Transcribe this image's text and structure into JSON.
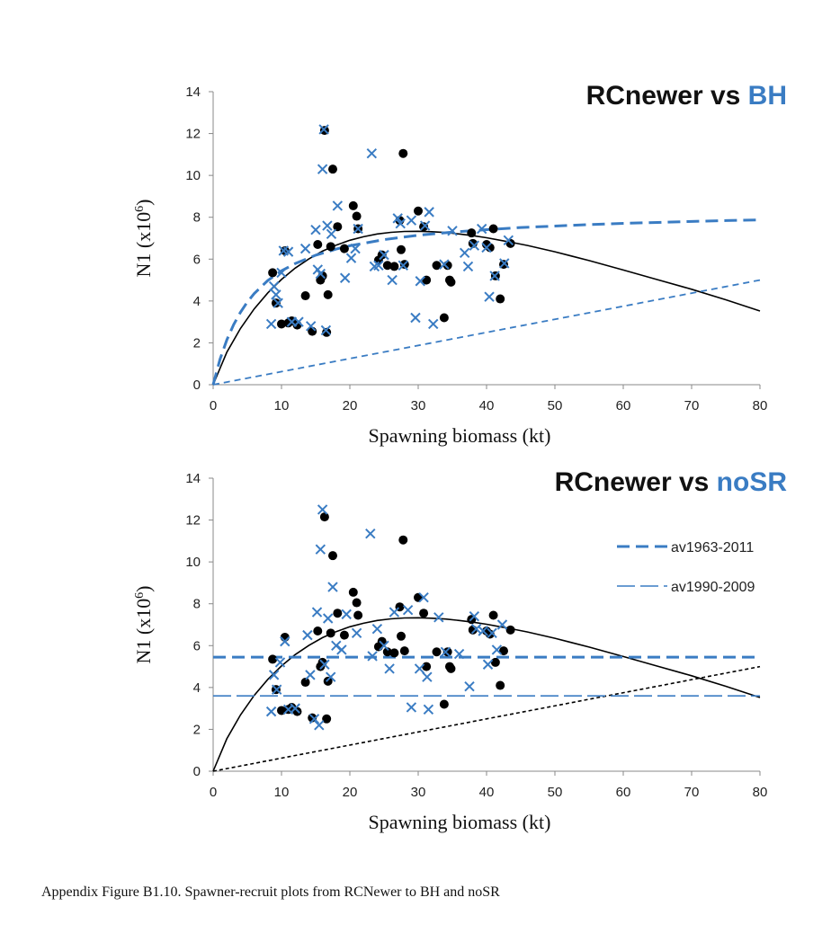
{
  "caption": "Appendix Figure B1.10.  Spawner-recruit plots from RCNewer to BH and noSR",
  "colors": {
    "blue": "#3a7cc3",
    "black": "#000000"
  },
  "chart_data": [
    {
      "type": "scatter",
      "title_part1": "RCnewer vs ",
      "title_part2": "BH",
      "xlabel": "Spawning biomass (kt)",
      "ylabel_base": "N1 (x10",
      "ylabel_exp": "6",
      "ylabel_close": ")",
      "xlim": [
        0,
        80
      ],
      "ylim": [
        0,
        14
      ],
      "xticks": [
        0,
        10,
        20,
        30,
        40,
        50,
        60,
        70,
        80
      ],
      "yticks": [
        0,
        2,
        4,
        6,
        8,
        10,
        12,
        14
      ],
      "grid": false,
      "series": [
        {
          "marker": "dot",
          "color": "#000000",
          "x": [
            8.7,
            9.2,
            10.0,
            10.5,
            11.0,
            11.5,
            12.3,
            13.5,
            14.5,
            15.3,
            15.7,
            16.0,
            16.3,
            16.6,
            16.8,
            17.2,
            17.5,
            18.2,
            19.2,
            20.5,
            21.0,
            21.2,
            24.2,
            24.7,
            25.5,
            26.5,
            27.3,
            27.5,
            27.8,
            28.0,
            30.0,
            30.8,
            31.2,
            32.7,
            34.3,
            34.6,
            34.8,
            33.8,
            37.8,
            38.0,
            40.0,
            40.5,
            41.0,
            41.3,
            42.0,
            42.5,
            43.5
          ],
          "y": [
            5.35,
            3.9,
            2.9,
            6.4,
            2.95,
            3.05,
            2.85,
            4.25,
            2.55,
            6.7,
            5.0,
            5.2,
            12.15,
            2.5,
            4.3,
            6.6,
            10.3,
            7.55,
            6.5,
            8.55,
            8.05,
            7.45,
            5.95,
            6.2,
            5.7,
            5.65,
            7.85,
            6.45,
            11.05,
            5.75,
            8.3,
            7.55,
            5.0,
            5.7,
            5.7,
            5.0,
            4.9,
            3.2,
            7.25,
            6.75,
            6.7,
            6.55,
            7.45,
            5.2,
            4.1,
            5.75,
            6.75
          ]
        },
        {
          "marker": "cross",
          "color": "#3a7cc3",
          "x": [
            8.5,
            8.9,
            9.2,
            9.5,
            10.0,
            10.3,
            11.0,
            11.5,
            12.5,
            13.5,
            14.3,
            15.0,
            15.3,
            15.7,
            16.0,
            16.2,
            16.5,
            16.7,
            17.3,
            18.2,
            19.3,
            20.2,
            20.8,
            21.2,
            23.2,
            23.6,
            24.2,
            25.0,
            26.2,
            27.0,
            27.4,
            27.8,
            29.0,
            29.6,
            30.3,
            31.0,
            31.6,
            32.2,
            33.8,
            35.0,
            36.8,
            37.3,
            38.2,
            39.3,
            40.0,
            40.4,
            41.2,
            42.6,
            43.2
          ],
          "y": [
            2.9,
            4.7,
            4.3,
            3.9,
            5.35,
            6.4,
            6.35,
            3.0,
            3.0,
            6.5,
            2.8,
            7.4,
            5.5,
            5.3,
            10.3,
            12.2,
            2.6,
            7.6,
            7.2,
            8.55,
            5.1,
            6.05,
            6.5,
            7.45,
            11.05,
            5.65,
            5.7,
            6.2,
            5.0,
            7.95,
            7.7,
            5.7,
            7.85,
            3.2,
            4.95,
            7.6,
            8.25,
            2.9,
            5.75,
            7.35,
            6.3,
            5.65,
            6.65,
            7.45,
            6.55,
            4.2,
            5.2,
            5.8,
            6.9
          ]
        },
        {
          "type": "line",
          "style": "solid",
          "color": "#000000",
          "x": [
            0,
            2,
            4,
            6,
            8,
            10,
            12,
            14,
            16,
            18,
            20,
            22,
            24,
            26,
            28,
            30,
            32,
            34,
            36,
            38,
            40,
            42,
            44,
            46,
            48,
            50,
            55,
            60,
            65,
            70,
            75,
            80
          ],
          "y": [
            0,
            1.55,
            2.69,
            3.62,
            4.39,
            5.03,
            5.57,
            6.01,
            6.38,
            6.67,
            6.9,
            7.07,
            7.2,
            7.28,
            7.32,
            7.33,
            7.31,
            7.27,
            7.2,
            7.12,
            7.02,
            6.9,
            6.78,
            6.65,
            6.5,
            6.35,
            5.93,
            5.48,
            5.02,
            4.56,
            4.06,
            3.52
          ]
        },
        {
          "type": "line",
          "style": "dash",
          "color": "#3a7cc3",
          "x": [
            0,
            1,
            2,
            3,
            4,
            5,
            6,
            8,
            10,
            12,
            15,
            18,
            20,
            25,
            30,
            35,
            40,
            45,
            50,
            55,
            60,
            65,
            70,
            75,
            80
          ],
          "y": [
            0,
            1.21,
            2.14,
            2.87,
            3.46,
            3.95,
            4.35,
            4.98,
            5.44,
            5.79,
            6.19,
            6.48,
            6.64,
            6.93,
            7.14,
            7.29,
            7.41,
            7.51,
            7.58,
            7.65,
            7.71,
            7.75,
            7.8,
            7.84,
            7.87
          ]
        },
        {
          "type": "line",
          "style": "dash-fine",
          "color": "#3a7cc3",
          "x": [
            0,
            80
          ],
          "y": [
            0,
            5.0
          ]
        }
      ]
    },
    {
      "type": "scatter",
      "title_part1": "RCnewer vs ",
      "title_part2": "noSR",
      "xlabel": "Spawning biomass (kt)",
      "ylabel_base": "N1 (x10",
      "ylabel_exp": "6",
      "ylabel_close": ")",
      "xlim": [
        0,
        80
      ],
      "ylim": [
        0,
        14
      ],
      "xticks": [
        0,
        10,
        20,
        30,
        40,
        50,
        60,
        70,
        80
      ],
      "yticks": [
        0,
        2,
        4,
        6,
        8,
        10,
        12,
        14
      ],
      "grid": false,
      "legend": {
        "placement": "top-right",
        "items": [
          {
            "label": "av1963-2011",
            "style": "dash",
            "color": "#3a7cc3"
          },
          {
            "label": "av1990-2009",
            "style": "longdash-thin",
            "color": "#3a7cc3"
          }
        ]
      },
      "series": [
        {
          "marker": "dot",
          "color": "#000000",
          "x": [
            8.7,
            9.2,
            10.0,
            10.5,
            11.0,
            11.5,
            12.3,
            13.5,
            14.5,
            15.3,
            15.7,
            16.0,
            16.3,
            16.6,
            16.8,
            17.2,
            17.5,
            18.2,
            19.2,
            20.5,
            21.0,
            21.2,
            24.2,
            24.7,
            25.5,
            26.5,
            27.3,
            27.5,
            27.8,
            28.0,
            30.0,
            30.8,
            31.2,
            32.7,
            34.3,
            34.6,
            34.8,
            33.8,
            37.8,
            38.0,
            40.0,
            40.5,
            41.0,
            41.3,
            42.0,
            42.5,
            43.5
          ],
          "y": [
            5.35,
            3.9,
            2.9,
            6.4,
            2.95,
            3.05,
            2.85,
            4.25,
            2.55,
            6.7,
            5.0,
            5.2,
            12.15,
            2.5,
            4.3,
            6.6,
            10.3,
            7.55,
            6.5,
            8.55,
            8.05,
            7.45,
            5.95,
            6.2,
            5.7,
            5.65,
            7.85,
            6.45,
            11.05,
            5.75,
            8.3,
            7.55,
            5.0,
            5.7,
            5.7,
            5.0,
            4.9,
            3.2,
            7.25,
            6.75,
            6.7,
            6.55,
            7.45,
            5.2,
            4.1,
            5.75,
            6.75
          ]
        },
        {
          "marker": "cross",
          "color": "#3a7cc3",
          "x": [
            8.5,
            8.9,
            9.3,
            9.8,
            10.5,
            11.0,
            12.0,
            13.8,
            14.2,
            14.8,
            15.2,
            15.5,
            15.7,
            16.0,
            16.3,
            16.8,
            17.2,
            17.5,
            18.0,
            18.8,
            19.5,
            21.0,
            23.0,
            23.3,
            24.0,
            25.0,
            25.8,
            26.5,
            28.5,
            29.0,
            30.2,
            30.8,
            31.3,
            31.5,
            33.0,
            34.0,
            36.0,
            37.5,
            38.2,
            38.5,
            39.5,
            40.2,
            40.8,
            41.5,
            42.3
          ],
          "y": [
            2.85,
            4.6,
            3.9,
            5.2,
            6.2,
            2.95,
            3.0,
            6.5,
            4.6,
            2.5,
            7.6,
            2.2,
            10.6,
            12.5,
            5.1,
            7.3,
            4.5,
            8.8,
            6.0,
            5.8,
            7.5,
            6.6,
            11.35,
            5.5,
            6.8,
            6.0,
            4.9,
            7.6,
            7.7,
            3.05,
            4.9,
            8.3,
            4.5,
            2.95,
            7.35,
            5.7,
            5.6,
            4.05,
            7.4,
            6.8,
            6.7,
            5.1,
            6.6,
            5.8,
            7.0
          ]
        },
        {
          "type": "line",
          "style": "solid",
          "color": "#000000",
          "x": [
            0,
            2,
            4,
            6,
            8,
            10,
            12,
            14,
            16,
            18,
            20,
            22,
            24,
            26,
            28,
            30,
            32,
            34,
            36,
            38,
            40,
            42,
            44,
            46,
            48,
            50,
            55,
            60,
            65,
            70,
            75,
            80
          ],
          "y": [
            0,
            1.55,
            2.69,
            3.62,
            4.39,
            5.03,
            5.57,
            6.01,
            6.38,
            6.67,
            6.9,
            7.07,
            7.2,
            7.28,
            7.32,
            7.33,
            7.31,
            7.27,
            7.2,
            7.12,
            7.02,
            6.9,
            6.78,
            6.65,
            6.5,
            6.35,
            5.93,
            5.48,
            5.02,
            4.56,
            4.06,
            3.52
          ]
        },
        {
          "type": "line",
          "style": "dot-fine",
          "color": "#000000",
          "x": [
            0,
            80
          ],
          "y": [
            0,
            5.0
          ]
        },
        {
          "type": "hline",
          "style": "dash",
          "color": "#3a7cc3",
          "name": "av1963-2011",
          "y": 5.45
        },
        {
          "type": "hline",
          "style": "longdash-thin",
          "color": "#3a7cc3",
          "name": "av1990-2009",
          "y": 3.6
        }
      ]
    }
  ]
}
